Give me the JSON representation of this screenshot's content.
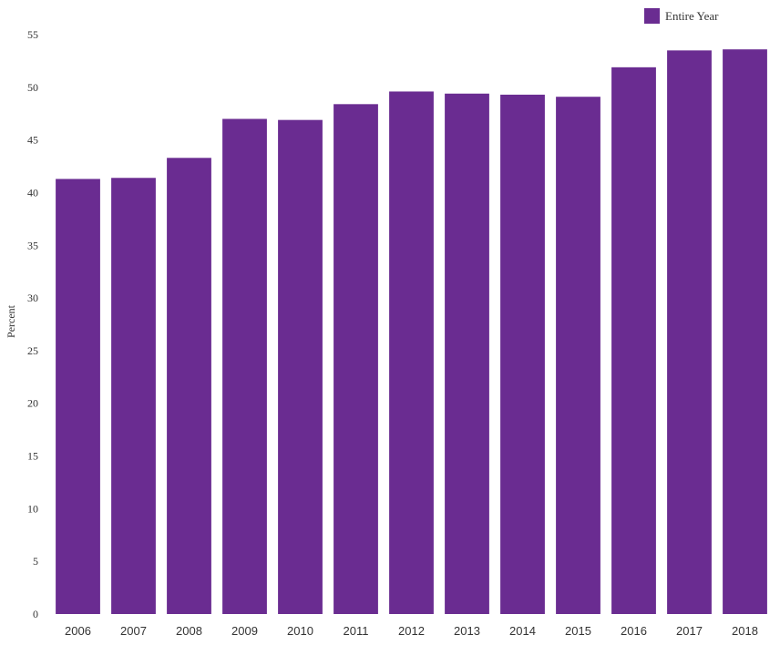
{
  "chart_data": {
    "type": "bar",
    "title": "",
    "xlabel": "",
    "ylabel": "Percent",
    "ylim": [
      0,
      55
    ],
    "yticks": [
      0,
      5,
      10,
      15,
      20,
      25,
      30,
      35,
      40,
      45,
      50,
      55
    ],
    "grid": false,
    "legend_position": "top-right",
    "categories": [
      "2006",
      "2007",
      "2008",
      "2009",
      "2010",
      "2011",
      "2012",
      "2013",
      "2014",
      "2015",
      "2016",
      "2017",
      "2018"
    ],
    "series": [
      {
        "name": "Entire Year",
        "color": "#6a2c91",
        "values": [
          41.3,
          41.4,
          43.3,
          47.0,
          46.9,
          48.4,
          49.6,
          49.4,
          49.3,
          49.1,
          51.9,
          53.5,
          53.6
        ]
      }
    ]
  }
}
